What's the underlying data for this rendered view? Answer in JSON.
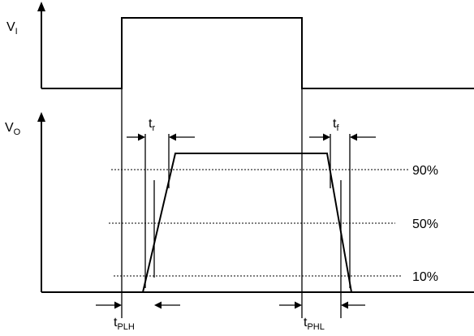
{
  "labels": {
    "vi_main": "V",
    "vi_sub": "I",
    "vo_main": "V",
    "vo_sub": "O",
    "tr_main": "t",
    "tr_sub": "r",
    "tf_main": "t",
    "tf_sub": "f",
    "tplh_main": "t",
    "tplh_sub": "PLH",
    "tphl_main": "t",
    "tphl_sub": "PHL"
  },
  "levels": {
    "p90": "90%",
    "p50": "50%",
    "p10": "10%"
  }
}
